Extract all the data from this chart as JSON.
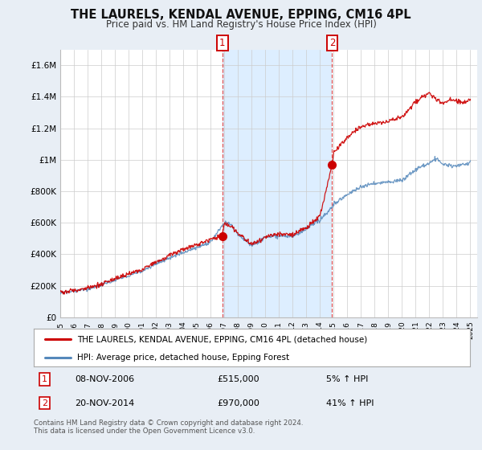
{
  "title": "THE LAURELS, KENDAL AVENUE, EPPING, CM16 4PL",
  "subtitle": "Price paid vs. HM Land Registry's House Price Index (HPI)",
  "ylabel_ticks": [
    "£0",
    "£200K",
    "£400K",
    "£600K",
    "£800K",
    "£1M",
    "£1.2M",
    "£1.4M",
    "£1.6M"
  ],
  "ytick_values": [
    0,
    200000,
    400000,
    600000,
    800000,
    1000000,
    1200000,
    1400000,
    1600000
  ],
  "ylim": [
    0,
    1700000
  ],
  "xlim_start": 1995,
  "xlim_end": 2025.5,
  "marker1_x": 2006.86,
  "marker1_y": 515000,
  "marker2_x": 2014.89,
  "marker2_y": 970000,
  "marker1_label": "1",
  "marker2_label": "2",
  "transaction1_date": "08-NOV-2006",
  "transaction1_price": "£515,000",
  "transaction1_hpi": "5% ↑ HPI",
  "transaction2_date": "20-NOV-2014",
  "transaction2_price": "£970,000",
  "transaction2_hpi": "41% ↑ HPI",
  "legend_label1": "THE LAURELS, KENDAL AVENUE, EPPING, CM16 4PL (detached house)",
  "legend_label2": "HPI: Average price, detached house, Epping Forest",
  "footer": "Contains HM Land Registry data © Crown copyright and database right 2024.\nThis data is licensed under the Open Government Licence v3.0.",
  "line1_color": "#cc0000",
  "line2_color": "#5588bb",
  "shade_color": "#ddeeff",
  "background_color": "#e8eef5",
  "plot_bg_color": "#ffffff",
  "vline_color": "#dd3333",
  "marker_box_color": "#cc0000"
}
